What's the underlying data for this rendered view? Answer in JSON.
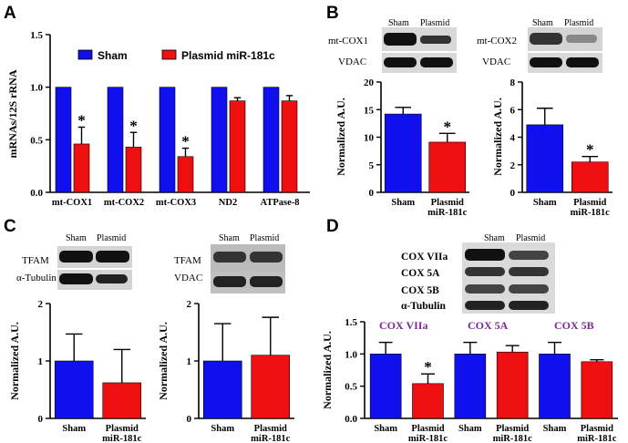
{
  "colors": {
    "sham": "#1010ee",
    "plasmid": "#ee1010",
    "errorbar": "#000000",
    "highlight": "#7b2a8f"
  },
  "panels": {
    "A": {
      "letter": "A"
    },
    "B": {
      "letter": "B"
    },
    "C": {
      "letter": "C"
    },
    "D": {
      "letter": "D"
    }
  },
  "legend": {
    "sham": "Sham",
    "plasmid": "Plasmid miR-181c"
  },
  "blots": {
    "B1": {
      "headers": [
        "Sham",
        "Plasmid"
      ],
      "rows": [
        "mt-COX1",
        "VDAC"
      ]
    },
    "B2": {
      "headers": [
        "Sham",
        "Plasmid"
      ],
      "rows": [
        "mt-COX2",
        "VDAC"
      ]
    },
    "C1": {
      "headers": [
        "Sham",
        "Plasmid"
      ],
      "rows": [
        "TFAM",
        "α-Tubulin"
      ]
    },
    "C2": {
      "headers": [
        "Sham",
        "Plasmid"
      ],
      "rows": [
        "TFAM",
        "VDAC"
      ]
    },
    "D": {
      "headers": [
        "Sham",
        "Plasmid"
      ],
      "rows": [
        "COX VIIa",
        "COX 5A",
        "COX 5B",
        "α-Tubulin"
      ]
    }
  },
  "chart_data": [
    {
      "id": "A",
      "type": "bar",
      "ylabel": "mRNAs/12S rRNA",
      "ylim": [
        0,
        1.5
      ],
      "yticks": [
        "0.0",
        "0.5",
        "1.0",
        "1.5"
      ],
      "categories": [
        "mt-COX1",
        "mt-COX2",
        "mt-COX3",
        "ND2",
        "ATPase-8"
      ],
      "series": [
        {
          "name": "Sham",
          "values": [
            1.0,
            1.0,
            1.0,
            1.0,
            1.0
          ],
          "errors": [
            0,
            0,
            0,
            0,
            0
          ]
        },
        {
          "name": "Plasmid miR-181c",
          "values": [
            0.46,
            0.43,
            0.34,
            0.87,
            0.87
          ],
          "errors": [
            0.16,
            0.14,
            0.08,
            0.03,
            0.05
          ]
        }
      ],
      "significance": [
        "*",
        "*",
        "*",
        "",
        ""
      ]
    },
    {
      "id": "B1",
      "type": "bar",
      "ylabel": "Normalized A.U.",
      "ylim": [
        0,
        20
      ],
      "yticks": [
        "0",
        "5",
        "10",
        "15",
        "20"
      ],
      "categories": [
        "Sham",
        "Plasmid miR-181c"
      ],
      "values": [
        14.2,
        9.1
      ],
      "errors": [
        1.2,
        1.6
      ],
      "significance": [
        "",
        "*"
      ]
    },
    {
      "id": "B2",
      "type": "bar",
      "ylabel": "Normalized A.U.",
      "ylim": [
        0,
        8
      ],
      "yticks": [
        "0",
        "2",
        "4",
        "6",
        "8"
      ],
      "categories": [
        "Sham",
        "Plasmid miR-181c"
      ],
      "values": [
        4.9,
        2.2
      ],
      "errors": [
        1.2,
        0.4
      ],
      "significance": [
        "",
        "*"
      ]
    },
    {
      "id": "C1",
      "type": "bar",
      "ylabel": "Normalized A.U.",
      "ylim": [
        0,
        2
      ],
      "yticks": [
        "0",
        "1",
        "2"
      ],
      "categories": [
        "Sham",
        "Plasmid miR-181c"
      ],
      "values": [
        1.0,
        0.62
      ],
      "errors": [
        0.47,
        0.58
      ],
      "significance": [
        "",
        ""
      ]
    },
    {
      "id": "C2",
      "type": "bar",
      "ylabel": "Normalized A.U.",
      "ylim": [
        0,
        2
      ],
      "yticks": [
        "0",
        "1",
        "2"
      ],
      "categories": [
        "Sham",
        "Plasmid miR-181c"
      ],
      "values": [
        1.0,
        1.1
      ],
      "errors": [
        0.65,
        0.66
      ],
      "significance": [
        "",
        ""
      ]
    },
    {
      "id": "D",
      "type": "bar",
      "ylabel": "Normalized A.U.",
      "ylim": [
        0,
        1.5
      ],
      "yticks": [
        "0.0",
        "0.5",
        "1.0",
        "1.5"
      ],
      "groups": [
        "COX VIIa",
        "COX 5A",
        "COX 5B"
      ],
      "categories": [
        "Sham",
        "Plasmid miR-181c",
        "Sham",
        "Plasmid miR-181c",
        "Sham",
        "Plasmid miR-181c"
      ],
      "values": [
        1.0,
        0.54,
        1.0,
        1.03,
        1.0,
        0.88
      ],
      "errors": [
        0.18,
        0.15,
        0.18,
        0.1,
        0.18,
        0.03
      ],
      "significance": [
        "",
        "*",
        "",
        "",
        "",
        ""
      ]
    }
  ]
}
